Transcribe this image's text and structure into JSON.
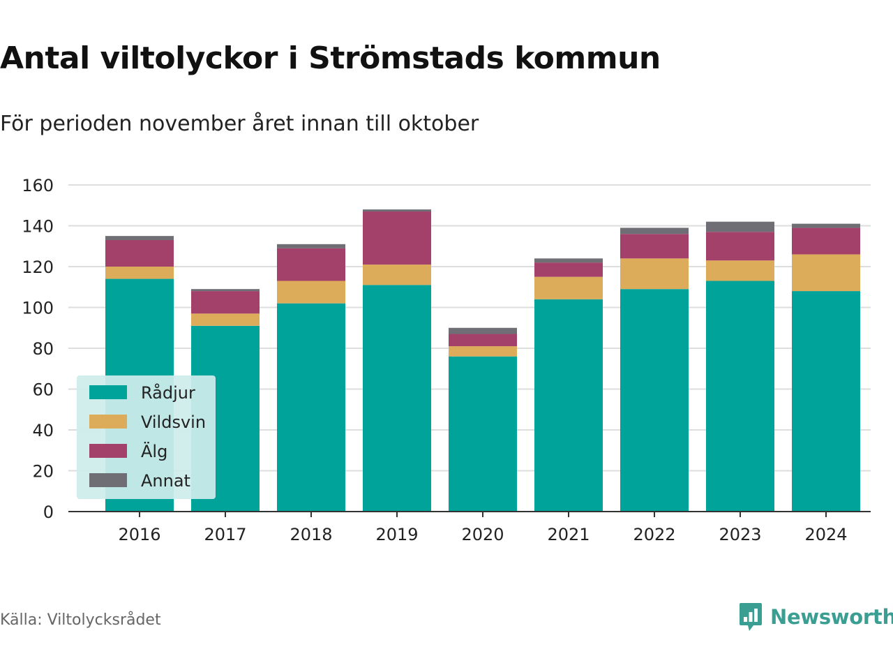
{
  "header": {
    "title": "Antal viltolyckor i Strömstads kommun",
    "subtitle": "För perioden november året innan till oktober"
  },
  "footer": {
    "source": "Källa: Viltolycksrådet",
    "brand": "Newsworthy",
    "brand_icon": "bar-chart-badge-icon"
  },
  "colors": {
    "Rådjur": "#00a39a",
    "Vildsvin": "#dcac5a",
    "Älg": "#a3416a",
    "Annat": "#6e6e74",
    "grid": "#dddddd",
    "axis": "#333333",
    "legend_bg": "#cdeceb",
    "brand": "#3a9e92"
  },
  "chart_data": {
    "type": "bar",
    "stacked": true,
    "categories": [
      "2016",
      "2017",
      "2018",
      "2019",
      "2020",
      "2021",
      "2022",
      "2023",
      "2024"
    ],
    "series": [
      {
        "name": "Rådjur",
        "values": [
          114,
          91,
          102,
          111,
          76,
          104,
          109,
          113,
          108
        ]
      },
      {
        "name": "Vildsvin",
        "values": [
          6,
          6,
          11,
          10,
          5,
          11,
          15,
          10,
          18
        ]
      },
      {
        "name": "Älg",
        "values": [
          13,
          11,
          16,
          26,
          6,
          7,
          12,
          14,
          13
        ]
      },
      {
        "name": "Annat",
        "values": [
          2,
          1,
          2,
          1,
          3,
          2,
          3,
          5,
          2
        ]
      }
    ],
    "y_ticks": [
      "0",
      "20",
      "40",
      "60",
      "80",
      "100",
      "120",
      "140",
      "160"
    ],
    "ylim": [
      0,
      160
    ],
    "grid": true,
    "legend_position": "bottom-left"
  }
}
